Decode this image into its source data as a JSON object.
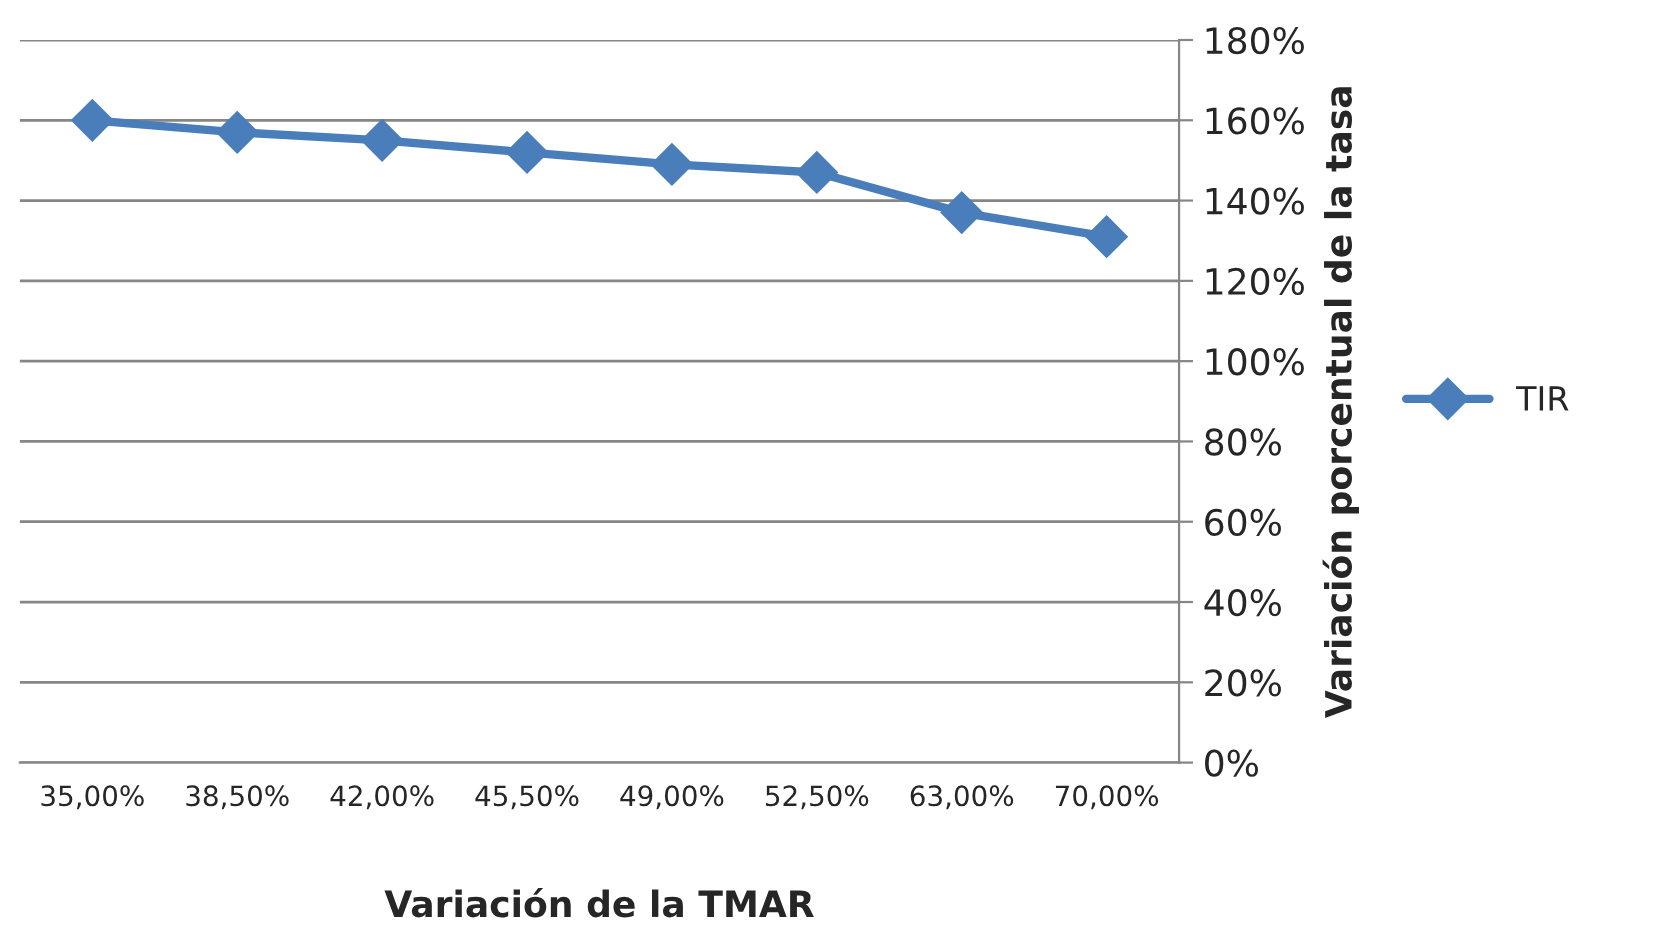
{
  "chart_data": {
    "type": "line",
    "xlabel": "Variación de la TMAR",
    "ylabel": "Variación porcentual de la tasa",
    "categories": [
      "35,00%",
      "38,50%",
      "42,00%",
      "45,50%",
      "49,00%",
      "52,50%",
      "63,00%",
      "70,00%"
    ],
    "series": [
      {
        "name": "TIR",
        "color": "#4a7ebb",
        "values": [
          160,
          157,
          155,
          152,
          149,
          147,
          137,
          131
        ]
      }
    ],
    "ylim": [
      0,
      180
    ],
    "yticks": [
      {
        "value": 0,
        "label": "0%"
      },
      {
        "value": 20,
        "label": "20%"
      },
      {
        "value": 40,
        "label": "40%"
      },
      {
        "value": 60,
        "label": "60%"
      },
      {
        "value": 80,
        "label": "80%"
      },
      {
        "value": 100,
        "label": "100%"
      },
      {
        "value": 120,
        "label": "120%"
      },
      {
        "value": 140,
        "label": "140%"
      },
      {
        "value": 160,
        "label": "160%"
      },
      {
        "value": 180,
        "label": "180%"
      }
    ],
    "grid": "y",
    "legend": "right",
    "marker": "diamond",
    "line_style": "solid"
  }
}
